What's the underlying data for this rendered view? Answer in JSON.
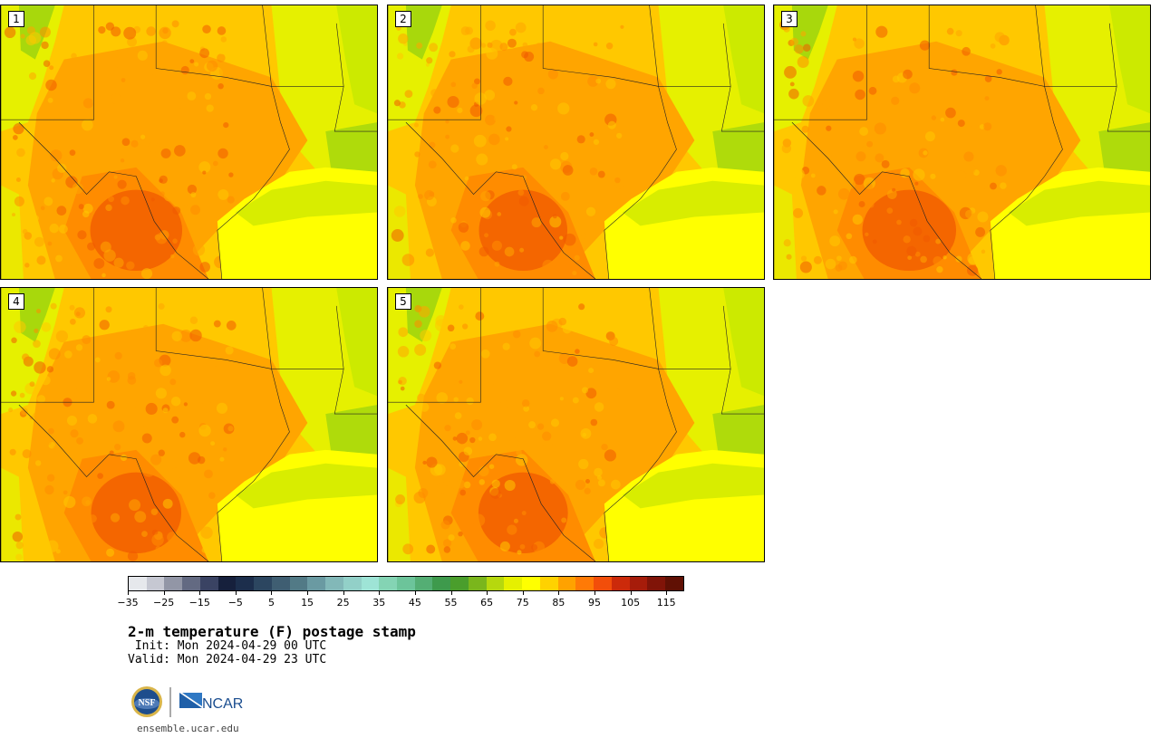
{
  "figure": {
    "title": "2-m temperature (F) postage stamp",
    "init": " Init: Mon 2024-04-29 00 UTC",
    "valid": "Valid: Mon 2024-04-29 23 UTC",
    "website": "ensemble.ucar.edu"
  },
  "logos": {
    "nsf": "NSF",
    "ncar": "NCAR"
  },
  "panels": [
    {
      "label": "1",
      "hot_core": 0.55,
      "seed": 3
    },
    {
      "label": "2",
      "hot_core": 0.45,
      "seed": 7
    },
    {
      "label": "3",
      "hot_core": 0.6,
      "seed": 11
    },
    {
      "label": "4",
      "hot_core": 0.5,
      "seed": 17
    },
    {
      "label": "5",
      "hot_core": 0.48,
      "seed": 23
    }
  ],
  "colorbar": {
    "ticks": [
      "−35",
      "−25",
      "−15",
      "−5",
      "5",
      "15",
      "25",
      "35",
      "45",
      "55",
      "65",
      "75",
      "85",
      "95",
      "105",
      "115"
    ],
    "tick_values": [
      -35,
      -25,
      -15,
      -5,
      5,
      15,
      25,
      35,
      45,
      55,
      65,
      75,
      85,
      95,
      105,
      115
    ],
    "min": -35,
    "max": 120,
    "step": 5,
    "colors": [
      "#e6e8ec",
      "#c6c8d2",
      "#9296a6",
      "#636a82",
      "#3a4363",
      "#16203c",
      "#1c2e4c",
      "#2c4660",
      "#3f5e72",
      "#527a86",
      "#6a9aa2",
      "#82b8b8",
      "#92d0c8",
      "#9ee4d6",
      "#84d4b4",
      "#6cc49a",
      "#54ae74",
      "#3e9a4c",
      "#4a9e2c",
      "#7ab61c",
      "#b6d80e",
      "#e6f000",
      "#ffff00",
      "#ffd200",
      "#ffa200",
      "#ff7a06",
      "#f24e0a",
      "#cc2a0a",
      "#a61c0a",
      "#801408",
      "#601004"
    ]
  },
  "colors": {
    "land_hot": "#ff8c00",
    "land_warm": "#ffa500",
    "land_mild": "#ffc800",
    "land_cool": "#e6f000",
    "land_cold": "#a8d80c",
    "hotspot": "#f05a00",
    "gulf": "#ffff00",
    "gulf_cool": "#c8e600"
  }
}
